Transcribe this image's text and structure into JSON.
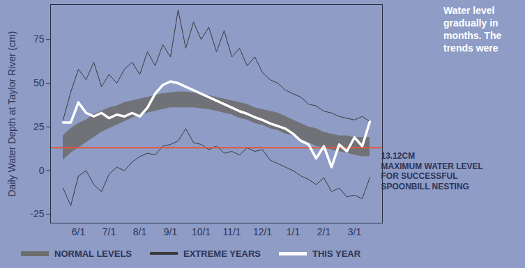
{
  "chart_data": {
    "type": "line",
    "y_label": "Daily Water Depth at Taylor River (cm)",
    "categories": [
      null,
      null,
      "6/1",
      null,
      null,
      null,
      "7/1",
      null,
      null,
      null,
      "8/1",
      null,
      null,
      null,
      "9/1",
      null,
      null,
      null,
      "10/1",
      null,
      null,
      null,
      "11/1",
      null,
      null,
      null,
      "12/1",
      null,
      null,
      null,
      "1/1",
      null,
      null,
      null,
      "2/1",
      null,
      null,
      null,
      "3/1",
      null,
      null
    ],
    "series": [
      {
        "name": "NORMAL LEVELS",
        "type": "area",
        "color": "#6e6e6e",
        "low": [
          6,
          10,
          13,
          16,
          19,
          22,
          24,
          26,
          28,
          30,
          32,
          33,
          34,
          35,
          36,
          36,
          36,
          36,
          35.5,
          35,
          34,
          33,
          32,
          30,
          29,
          27,
          26,
          24,
          23,
          21,
          20,
          18,
          16,
          14,
          13,
          12,
          11,
          10,
          9,
          8,
          8
        ],
        "high": [
          20,
          24,
          27,
          29,
          32,
          34,
          36,
          37,
          39,
          40,
          41,
          42,
          43,
          44,
          44.5,
          45,
          45,
          44.5,
          44,
          43,
          42,
          41,
          40,
          39,
          38,
          36,
          35,
          34,
          33,
          31,
          29,
          27,
          25,
          24,
          22,
          21,
          20,
          20,
          19,
          19,
          19
        ]
      },
      {
        "name": "EXTREME YEARS",
        "type": "line",
        "color": "#3a3a3a",
        "high": [
          29,
          45,
          58,
          52,
          62,
          48,
          55,
          50,
          58,
          62,
          55,
          68,
          60,
          72,
          65,
          92,
          70,
          85,
          75,
          82,
          68,
          80,
          65,
          70,
          60,
          65,
          56,
          52,
          50,
          46,
          44,
          42,
          38,
          37,
          34,
          33,
          31,
          30,
          29,
          31,
          28
        ],
        "low": [
          -10,
          -20,
          -3,
          0,
          -8,
          -12,
          -2,
          2,
          0,
          5,
          8,
          10,
          9,
          14,
          15,
          17,
          24,
          16,
          15,
          12,
          14,
          10,
          11,
          9,
          13,
          11,
          12,
          6,
          4,
          2,
          0,
          -3,
          -5,
          -8,
          -4,
          -12,
          -10,
          -15,
          -14,
          -16,
          -4
        ]
      },
      {
        "name": "THIS YEAR",
        "type": "line",
        "color": "#ffffff",
        "values": [
          27.5,
          27.5,
          39,
          33,
          31,
          33,
          30,
          32,
          31,
          33,
          31,
          36,
          44,
          49,
          51,
          50,
          48,
          46,
          44,
          42,
          40,
          38,
          36,
          34,
          32.5,
          30.5,
          29,
          27,
          25.5,
          24,
          21,
          17,
          15,
          7,
          14,
          2,
          15,
          11,
          19,
          14,
          28
        ]
      }
    ],
    "annotations": [
      {
        "y": 13.12,
        "label": "13.12CM",
        "text": "MAXIMUM WATER LEVEL FOR SUCCESSFUL SPOONBILL NESTING",
        "color": "#e8553a"
      }
    ],
    "note": [
      "Water level",
      "gradually in",
      "months. The",
      "trends were"
    ],
    "ylim": [
      -30,
      95
    ],
    "yticks": [
      -25,
      0,
      25,
      50,
      75
    ],
    "grid": false,
    "legend": "bottom"
  }
}
